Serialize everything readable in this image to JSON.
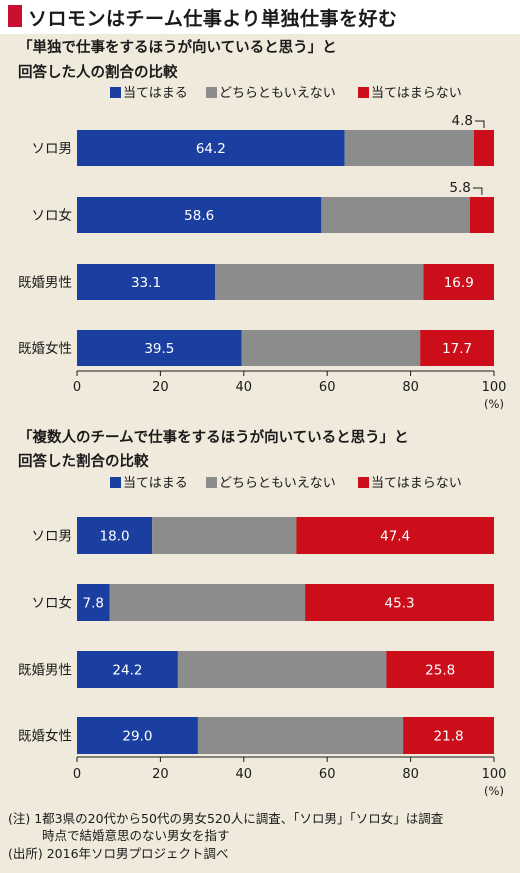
{
  "title": "ソロモンはチーム仕事より単独仕事を好む",
  "colors": {
    "agree": "#1a3fa0",
    "neutral": "#8c8c8c",
    "disagree": "#cc0e1b",
    "background": "#efeadb"
  },
  "chart_data": [
    {
      "type": "bar",
      "orientation": "horizontal",
      "stacked": true,
      "title_lines": [
        "「単独で仕事をするほうが向いていると思う」と",
        "回答した人の割合の比較"
      ],
      "categories": [
        "ソロ男",
        "ソロ女",
        "既婚男性",
        "既婚女性"
      ],
      "series": [
        {
          "name": "当てはまる",
          "values": [
            64.2,
            58.6,
            33.1,
            39.5
          ],
          "labels": [
            "64.2",
            "58.6",
            "33.1",
            "39.5"
          ]
        },
        {
          "name": "どちらともいえない",
          "values": [
            31.0,
            35.6,
            50.0,
            42.8
          ],
          "labels": [
            "",
            "",
            "",
            ""
          ]
        },
        {
          "name": "当てはまらない",
          "values": [
            4.8,
            5.8,
            16.9,
            17.7
          ],
          "labels": [
            "4.8",
            "5.8",
            "16.9",
            "17.7"
          ]
        }
      ],
      "xlim": [
        0,
        100
      ],
      "xticks": [
        "0",
        "20",
        "40",
        "60",
        "80",
        "100"
      ],
      "unit": "(%)",
      "legend": "top"
    },
    {
      "type": "bar",
      "orientation": "horizontal",
      "stacked": true,
      "title_lines": [
        "「複数人のチームで仕事をするほうが向いていると思う」と",
        "回答した割合の比較"
      ],
      "categories": [
        "ソロ男",
        "ソロ女",
        "既婚男性",
        "既婚女性"
      ],
      "series": [
        {
          "name": "当てはまる",
          "values": [
            18.0,
            7.8,
            24.2,
            29.0
          ],
          "labels": [
            "18.0",
            "7.8",
            "24.2",
            "29.0"
          ]
        },
        {
          "name": "どちらともいえない",
          "values": [
            34.6,
            46.9,
            50.0,
            49.2
          ],
          "labels": [
            "",
            "",
            "",
            ""
          ]
        },
        {
          "name": "当てはまらない",
          "values": [
            47.4,
            45.3,
            25.8,
            21.8
          ],
          "labels": [
            "47.4",
            "45.3",
            "25.8",
            "21.8"
          ]
        }
      ],
      "xlim": [
        0,
        100
      ],
      "xticks": [
        "0",
        "20",
        "40",
        "60",
        "80",
        "100"
      ],
      "unit": "(%)",
      "legend": "top"
    }
  ],
  "notes": [
    "(注) 1都3県の20代から50代の男女520人に調査、「ソロ男」「ソロ女」は調査",
    "時点で結婚意思のない男女を指す",
    "(出所) 2016年ソロ男プロジェクト調べ"
  ]
}
